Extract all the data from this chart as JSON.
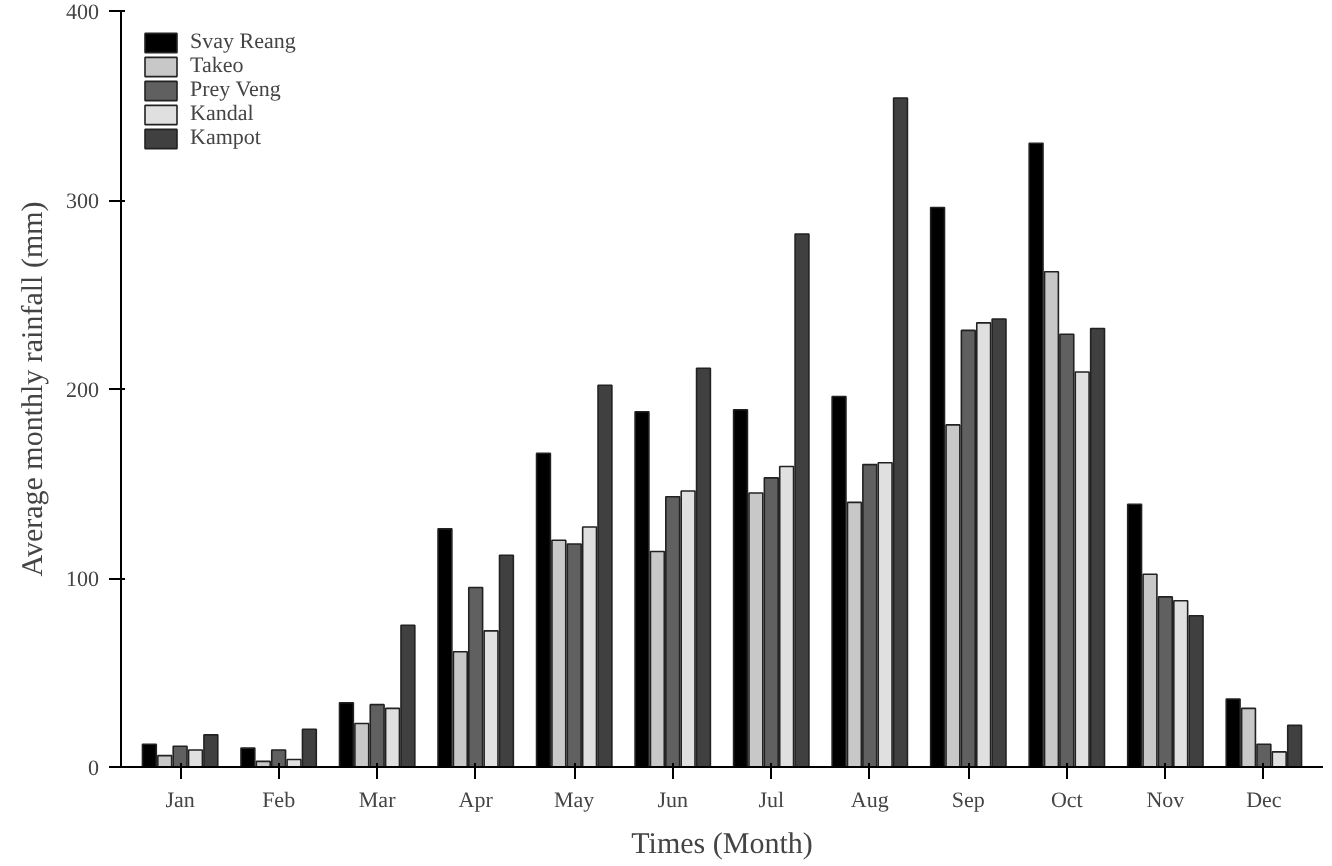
{
  "chart_data": {
    "type": "bar",
    "xlabel": "Times (Month)",
    "ylabel": "Average monthly rainfall (mm)",
    "categories": [
      "Jan",
      "Feb",
      "Mar",
      "Apr",
      "May",
      "Jun",
      "Jul",
      "Aug",
      "Sep",
      "Oct",
      "Nov",
      "Dec"
    ],
    "series": [
      {
        "name": "Svay Reang",
        "color": "#000000",
        "values": [
          12,
          10,
          34,
          126,
          166,
          188,
          189,
          196,
          296,
          330,
          139,
          36
        ]
      },
      {
        "name": "Takeo",
        "color": "#c8c8c8",
        "values": [
          6,
          3,
          23,
          61,
          120,
          114,
          145,
          140,
          181,
          262,
          102,
          31
        ]
      },
      {
        "name": "Prey Veng",
        "color": "#606060",
        "values": [
          11,
          9,
          33,
          95,
          118,
          143,
          153,
          160,
          231,
          229,
          90,
          12
        ]
      },
      {
        "name": "Kandal",
        "color": "#e0e0e0",
        "values": [
          9,
          4,
          31,
          72,
          127,
          146,
          159,
          161,
          235,
          209,
          88,
          8
        ]
      },
      {
        "name": "Kampot",
        "color": "#404040",
        "values": [
          17,
          20,
          75,
          112,
          202,
          211,
          282,
          354,
          237,
          232,
          80,
          22
        ]
      }
    ],
    "ylim": [
      0,
      400
    ],
    "yticks": [
      0,
      100,
      200,
      300,
      400
    ],
    "grid": false,
    "legend": "top left"
  }
}
